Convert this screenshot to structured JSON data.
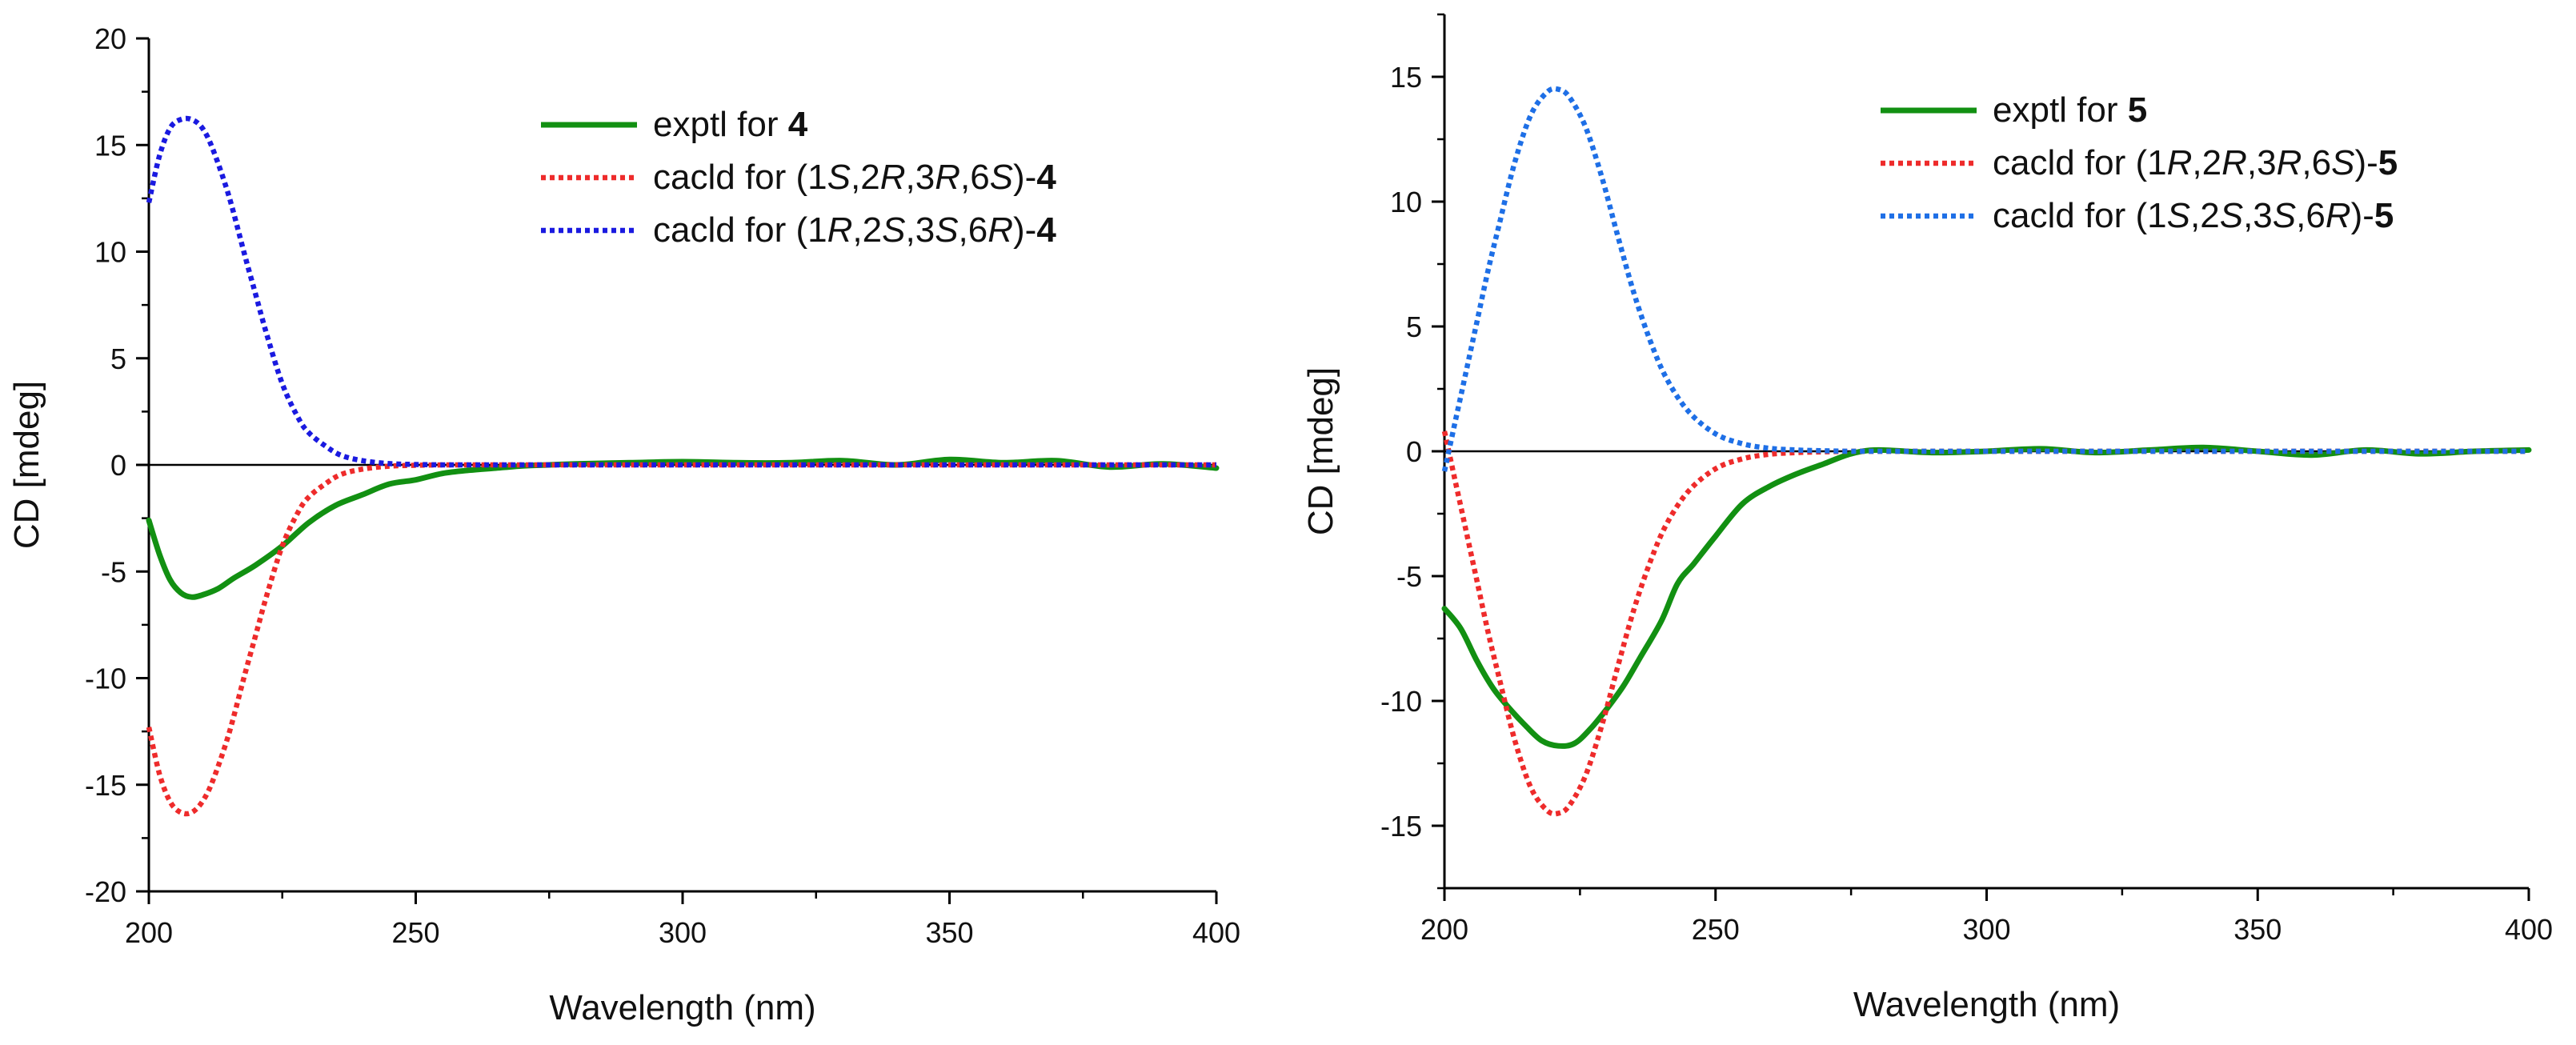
{
  "chart_data": [
    {
      "type": "line",
      "xlabel": "Wavelength (nm)",
      "ylabel": "CD [mdeg]",
      "xlim": [
        200,
        400
      ],
      "ylim": [
        -20,
        20
      ],
      "xticks": [
        "200",
        "250",
        "300",
        "350",
        "400"
      ],
      "yticks": [
        "-20",
        "-15",
        "-10",
        "-5",
        "0",
        "5",
        "10",
        "15",
        "20"
      ],
      "legend_position": "top-right",
      "series": [
        {
          "name": "exptl for 4",
          "label_parts": [
            "exptl for ",
            "4"
          ],
          "color": "#129012",
          "style": "solid",
          "x": [
            200,
            202,
            204,
            206,
            208,
            210,
            213,
            216,
            220,
            225,
            230,
            235,
            240,
            245,
            250,
            255,
            260,
            265,
            270,
            275,
            280,
            290,
            300,
            310,
            320,
            330,
            340,
            350,
            360,
            370,
            380,
            390,
            400
          ],
          "y": [
            -2.6,
            -4.2,
            -5.4,
            -6.0,
            -6.2,
            -6.1,
            -5.8,
            -5.3,
            -4.7,
            -3.8,
            -2.7,
            -1.9,
            -1.4,
            -0.9,
            -0.7,
            -0.4,
            -0.25,
            -0.15,
            -0.05,
            0.0,
            0.05,
            0.1,
            0.15,
            0.1,
            0.1,
            0.2,
            0.0,
            0.25,
            0.1,
            0.2,
            -0.1,
            0.05,
            -0.15
          ]
        },
        {
          "name": "cacld for (1S,2R,3R,6S)-4",
          "label_parts": [
            "cacld for (1",
            "S",
            ",2",
            "R",
            ",3",
            "R",
            ",6",
            "S",
            ")-",
            "4"
          ],
          "color": "#ee2b2b",
          "style": "dotted",
          "x": [
            200,
            202,
            204,
            206,
            208,
            210,
            212,
            215,
            218,
            220,
            222,
            225,
            228,
            230,
            233,
            236,
            240,
            245,
            250,
            255,
            260,
            270,
            280,
            300,
            350,
            400
          ],
          "y": [
            -12.3,
            -14.5,
            -15.8,
            -16.3,
            -16.3,
            -15.8,
            -14.8,
            -12.6,
            -9.8,
            -8.0,
            -6.2,
            -3.8,
            -2.2,
            -1.5,
            -0.9,
            -0.45,
            -0.2,
            -0.06,
            -0.02,
            0.0,
            0.0,
            0.0,
            0.0,
            0.0,
            0.0,
            0.0
          ]
        },
        {
          "name": "cacld for (1R,2S,3S,6R)-4",
          "label_parts": [
            "cacld for (1",
            "R",
            ",2",
            "S",
            ",3",
            "S",
            ",6",
            "R",
            ")-",
            "4"
          ],
          "color": "#1a1ae0",
          "style": "dotted",
          "x": [
            200,
            202,
            204,
            206,
            208,
            210,
            212,
            215,
            218,
            220,
            222,
            225,
            228,
            230,
            233,
            236,
            240,
            245,
            250,
            255,
            260,
            270,
            280,
            300,
            350,
            400
          ],
          "y": [
            12.3,
            14.5,
            15.8,
            16.2,
            16.2,
            15.8,
            14.8,
            12.6,
            9.8,
            8.0,
            6.2,
            3.8,
            2.2,
            1.5,
            0.9,
            0.45,
            0.2,
            0.06,
            0.02,
            0.0,
            0.0,
            0.0,
            0.0,
            0.0,
            0.0,
            0.0
          ]
        }
      ]
    },
    {
      "type": "line",
      "xlabel": "Wavelength (nm)",
      "ylabel": "CD [mdeg]",
      "xlim": [
        200,
        400
      ],
      "ylim": [
        -17.5,
        17.5
      ],
      "xticks": [
        "200",
        "250",
        "300",
        "350",
        "400"
      ],
      "yticks": [
        "-15",
        "-10",
        "-5",
        "0",
        "5",
        "10",
        "15"
      ],
      "legend_position": "top-right",
      "series": [
        {
          "name": "exptl for 5",
          "label_parts": [
            "exptl for ",
            "5"
          ],
          "color": "#129012",
          "style": "solid",
          "x": [
            200,
            203,
            206,
            209,
            212,
            215,
            218,
            221,
            224,
            227,
            230,
            233,
            236,
            240,
            243,
            246,
            250,
            255,
            260,
            265,
            270,
            275,
            280,
            290,
            300,
            310,
            320,
            330,
            340,
            350,
            360,
            370,
            380,
            390,
            400
          ],
          "y": [
            -6.3,
            -7.1,
            -8.4,
            -9.5,
            -10.3,
            -11.0,
            -11.6,
            -11.8,
            -11.7,
            -11.1,
            -10.3,
            -9.4,
            -8.3,
            -6.8,
            -5.3,
            -4.5,
            -3.4,
            -2.1,
            -1.4,
            -0.9,
            -0.5,
            -0.1,
            0.05,
            -0.05,
            0.0,
            0.1,
            -0.05,
            0.05,
            0.15,
            0.0,
            -0.15,
            0.05,
            -0.1,
            0.0,
            0.05
          ]
        },
        {
          "name": "cacld for (1R,2R,3R,6S)-5",
          "label_parts": [
            "cacld for (1",
            "R",
            ",2",
            "R",
            ",3",
            "R",
            ",6",
            "S",
            ")-",
            "5"
          ],
          "color": "#ee2b2b",
          "style": "dotted",
          "x": [
            200,
            202,
            204,
            206,
            208,
            210,
            213,
            216,
            219,
            221,
            223,
            226,
            229,
            232,
            235,
            238,
            241,
            245,
            250,
            255,
            260,
            265,
            270,
            275,
            280,
            300,
            350,
            400
          ],
          "y": [
            0.8,
            -1.2,
            -3.2,
            -5.2,
            -7.2,
            -9.0,
            -11.6,
            -13.5,
            -14.4,
            -14.5,
            -14.2,
            -13.0,
            -11.0,
            -8.6,
            -6.3,
            -4.4,
            -2.9,
            -1.6,
            -0.7,
            -0.3,
            -0.12,
            -0.05,
            -0.02,
            0.0,
            0.0,
            0.0,
            0.0,
            0.0
          ]
        },
        {
          "name": "cacld for (1S,2S,3S,6R)-5",
          "label_parts": [
            "cacld for (1",
            "S",
            ",2",
            "S",
            ",3",
            "S",
            ",6",
            "R",
            ")-",
            "5"
          ],
          "color": "#1e6fe6",
          "style": "dotted",
          "x": [
            200,
            202,
            204,
            206,
            208,
            210,
            213,
            216,
            219,
            221,
            223,
            226,
            229,
            232,
            235,
            238,
            241,
            245,
            250,
            255,
            260,
            265,
            270,
            275,
            280,
            300,
            350,
            400
          ],
          "y": [
            -0.8,
            1.2,
            3.2,
            5.2,
            7.2,
            9.0,
            11.6,
            13.5,
            14.4,
            14.5,
            14.2,
            13.0,
            11.0,
            8.6,
            6.3,
            4.4,
            2.9,
            1.6,
            0.7,
            0.3,
            0.12,
            0.05,
            0.02,
            0.0,
            0.0,
            0.0,
            0.0,
            0.0
          ]
        }
      ]
    }
  ]
}
